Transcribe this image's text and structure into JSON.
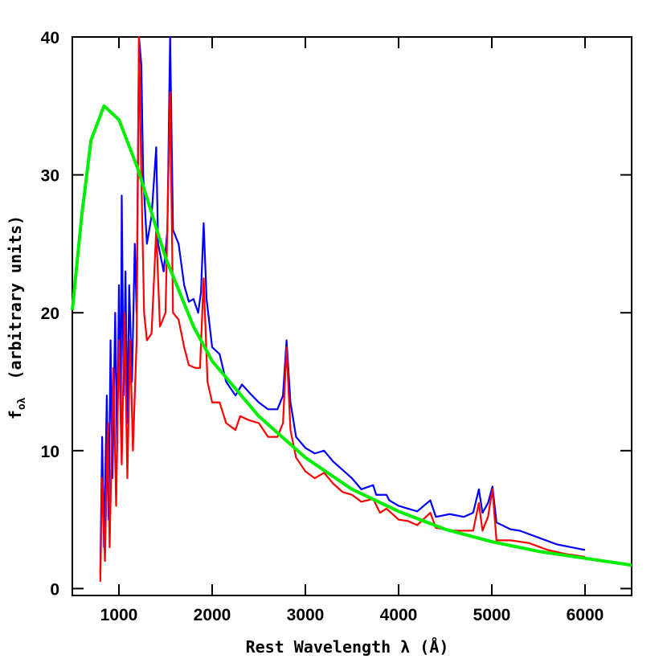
{
  "chart_data": {
    "type": "line",
    "xlabel": "Rest Wavelength λ (Å)",
    "ylabel": "f",
    "ylabel_sub": "oλ",
    "ylabel_rest": "(arbitrary units)",
    "xlim": [
      500,
      6500
    ],
    "ylim": [
      -0.5,
      40
    ],
    "xticks": [
      1000,
      2000,
      3000,
      4000,
      5000,
      6000
    ],
    "yticks": [
      0,
      10,
      20,
      30,
      40
    ],
    "series": [
      {
        "color": "#0000ff",
        "x": [
          800,
          820,
          840,
          870,
          890,
          910,
          930,
          960,
          980,
          1000,
          1020,
          1030,
          1050,
          1070,
          1090,
          1110,
          1140,
          1170,
          1190,
          1215,
          1240,
          1260,
          1300,
          1350,
          1400,
          1420,
          1480,
          1520,
          1549,
          1580,
          1640,
          1700,
          1750,
          1800,
          1850,
          1880,
          1909,
          1940,
          2000,
          2080,
          2150,
          2250,
          2320,
          2400,
          2500,
          2600,
          2700,
          2760,
          2798,
          2840,
          2900,
          3000,
          3100,
          3200,
          3300,
          3400,
          3500,
          3600,
          3727,
          3760,
          3870,
          3900,
          4000,
          4100,
          4200,
          4340,
          4400,
          4550,
          4700,
          4800,
          4861,
          4900,
          4959,
          5007,
          5050,
          5200,
          5300,
          5500,
          5700,
          5850,
          6000
        ],
        "values": [
          1,
          11,
          3,
          14,
          5,
          18,
          8,
          20,
          10,
          22,
          12,
          28.5,
          14,
          23,
          12,
          22,
          15,
          25,
          20,
          40,
          38,
          30,
          25,
          27,
          32,
          25,
          23,
          26,
          40,
          26,
          25,
          22,
          20.8,
          21,
          20,
          21.5,
          26.5,
          21,
          17.5,
          17,
          15,
          14,
          14.8,
          14.2,
          13.5,
          13,
          13,
          14,
          18,
          13.5,
          11,
          10.2,
          9.8,
          10,
          9.2,
          8.6,
          8,
          7.2,
          7.5,
          6.8,
          6.8,
          6.4,
          6,
          5.8,
          5.6,
          6.4,
          5.2,
          5.4,
          5.2,
          5.5,
          7.2,
          5.5,
          6.2,
          7.4,
          4.8,
          4.3,
          4.2,
          3.7,
          3.2,
          3,
          2.8
        ]
      },
      {
        "color": "#ff0000",
        "x": [
          800,
          820,
          850,
          880,
          900,
          940,
          970,
          1000,
          1030,
          1060,
          1090,
          1120,
          1150,
          1190,
          1215,
          1240,
          1270,
          1300,
          1350,
          1400,
          1440,
          1500,
          1549,
          1580,
          1640,
          1700,
          1750,
          1820,
          1870,
          1909,
          1950,
          2000,
          2080,
          2150,
          2250,
          2300,
          2400,
          2500,
          2600,
          2700,
          2760,
          2798,
          2840,
          2900,
          3000,
          3100,
          3200,
          3300,
          3400,
          3500,
          3600,
          3727,
          3800,
          3870,
          4000,
          4100,
          4200,
          4340,
          4400,
          4600,
          4800,
          4861,
          4900,
          4959,
          5007,
          5050,
          5200,
          5400,
          5600,
          5800,
          6000
        ],
        "values": [
          0.5,
          8,
          2,
          12,
          3,
          16,
          6,
          18,
          9,
          20,
          8,
          18,
          10,
          18,
          40,
          30,
          20,
          18,
          18.5,
          26,
          19,
          20,
          36,
          20,
          19.5,
          17.5,
          16.2,
          16,
          16,
          22.5,
          15,
          13.5,
          13.5,
          12,
          11.5,
          12.5,
          12.2,
          12,
          11,
          11,
          12,
          17.5,
          11.5,
          9.5,
          8.5,
          8,
          8.4,
          7.6,
          7,
          6.8,
          6.3,
          6.5,
          5.5,
          5.8,
          5,
          4.9,
          4.6,
          5.5,
          4.4,
          4.2,
          4.2,
          6.2,
          4.2,
          5.2,
          7.2,
          3.5,
          3.5,
          3.3,
          2.8,
          2.5,
          2.3
        ]
      },
      {
        "color": "#00ee00",
        "x": [
          500,
          600,
          700,
          840,
          1000,
          1200,
          1500,
          1800,
          2000,
          2500,
          3000,
          3500,
          4000,
          4500,
          5000,
          5500,
          6000,
          6500
        ],
        "values": [
          20.2,
          27,
          32.5,
          35,
          34,
          30.5,
          24,
          19,
          16.5,
          12.5,
          9.5,
          7.2,
          5.6,
          4.3,
          3.4,
          2.7,
          2.2,
          1.7
        ]
      }
    ]
  }
}
